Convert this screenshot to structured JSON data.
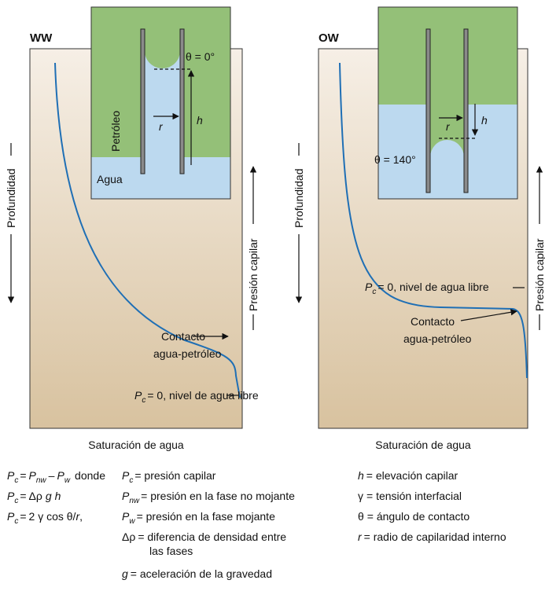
{
  "panels": [
    {
      "label": "WW",
      "inset": {
        "theta": "θ = 0°",
        "oil": "Petróleo",
        "water": "Agua",
        "r": "r",
        "h": "h"
      },
      "depth": "Profundidad",
      "pressure": "Presión capilar",
      "contact": [
        "Contacto",
        "agua-petróleo"
      ],
      "free_water": [
        "P",
        "c",
        "= 0, nivel de agua libre"
      ],
      "x_label": "Saturación de agua"
    },
    {
      "label": "OW",
      "inset": {
        "theta": "θ = 140°",
        "r": "r",
        "h": "h"
      },
      "depth": "Profundidad",
      "pressure": "Presión capilar",
      "contact": [
        "Contacto",
        "agua-petróleo"
      ],
      "free_water": [
        "P",
        "c",
        "= 0, nivel de agua libre"
      ],
      "x_label": "Saturación de agua"
    }
  ],
  "legend": {
    "formulas": [
      [
        "P",
        "c",
        "=",
        "P",
        "nw",
        "–",
        "P",
        "w",
        "donde"
      ],
      [
        "P",
        "c",
        "=",
        "Δρ",
        "g",
        "h"
      ],
      [
        "P",
        "c",
        "=",
        "2 γ cos θ/",
        "r",
        ","
      ]
    ],
    "symbols": [
      [
        "P",
        "c",
        "= presión capilar"
      ],
      [
        "P",
        "nw",
        "= presión en la fase no mojante"
      ],
      [
        "P",
        "w",
        "= presión en la fase mojante"
      ],
      [
        "Δρ",
        "= diferencia de densidad entre",
        "las fases"
      ],
      [
        "g",
        "= aceleración de la gravedad"
      ],
      [
        "h",
        "= elevación capilar"
      ],
      [
        "γ",
        "= tensión interfacial"
      ],
      [
        "θ",
        "= ángulo de contacto"
      ],
      [
        "r",
        "= radio de capilaridad interno"
      ]
    ]
  }
}
